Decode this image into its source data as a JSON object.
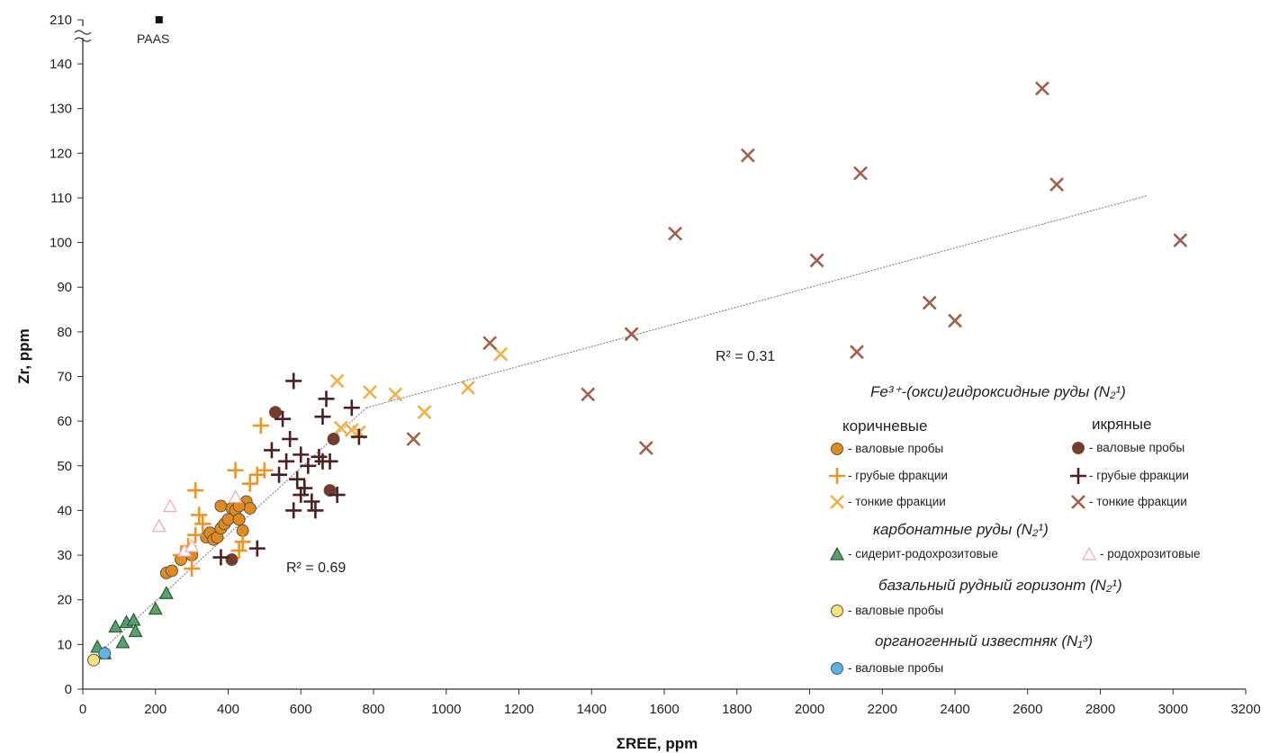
{
  "chart_data": {
    "type": "scatter",
    "xlabel": "ΣREE, ppm",
    "ylabel": "Zr, ppm",
    "xlim": [
      0,
      3200
    ],
    "ylim": [
      0,
      140
    ],
    "x_ticks": [
      0,
      200,
      400,
      600,
      800,
      1000,
      1200,
      1400,
      1600,
      1800,
      2000,
      2200,
      2400,
      2600,
      2800,
      3000,
      3200
    ],
    "y_ticks": [
      0,
      10,
      20,
      30,
      40,
      50,
      60,
      70,
      80,
      90,
      100,
      110,
      120,
      130,
      140
    ],
    "y_break_label": "210",
    "grid": false,
    "reference_point": {
      "label": "PAAS",
      "x": 210,
      "y": 210
    },
    "annotations": [
      {
        "text": "R² = 0.69"
      },
      {
        "text": "R² = 0.31"
      }
    ],
    "trendlines": [
      {
        "x": [
          30,
          780
        ],
        "y": [
          7,
          63
        ]
      },
      {
        "x": [
          780,
          2930
        ],
        "y": [
          63,
          110.5
        ]
      }
    ],
    "legend": {
      "group1_title": "Fe³⁺-(окси)гидроксидные руды (N₂¹)",
      "col1_header": "коричневые",
      "col2_header": "икряные",
      "bulk": "- валовые пробы",
      "coarse": "- грубые фракции",
      "fine": "- тонкие фракции",
      "group2_title": "карбонатные руды (N₂¹)",
      "siderite": "- сидерит-родохрозитовые",
      "rhodo": "- родохрозитовые",
      "group3_title": "базальный рудный горизонт (N₂¹)",
      "basal": "- валовые пробы",
      "group4_title": "органогенный известняк (N₁³)",
      "limestone": "- валовые пробы"
    },
    "series": [
      {
        "key": "brown_bulk",
        "color": "#e08a1e",
        "values": [
          [
            230,
            26
          ],
          [
            245,
            26.5
          ],
          [
            270,
            29
          ],
          [
            300,
            30
          ],
          [
            340,
            34
          ],
          [
            350,
            35
          ],
          [
            360,
            33.5
          ],
          [
            370,
            34
          ],
          [
            380,
            36
          ],
          [
            390,
            37
          ],
          [
            400,
            38
          ],
          [
            380,
            41
          ],
          [
            410,
            40.5
          ],
          [
            420,
            40
          ],
          [
            430,
            38
          ],
          [
            440,
            35.5
          ],
          [
            450,
            42
          ],
          [
            460,
            40.5
          ],
          [
            430,
            41
          ]
        ]
      },
      {
        "key": "brown_coarse",
        "color": "#e8952a",
        "values": [
          [
            280,
            30
          ],
          [
            300,
            27
          ],
          [
            310,
            44.5
          ],
          [
            320,
            39
          ],
          [
            310,
            34.5
          ],
          [
            330,
            37
          ],
          [
            290,
            32
          ],
          [
            270,
            30
          ],
          [
            420,
            49
          ],
          [
            440,
            33
          ],
          [
            430,
            31
          ],
          [
            460,
            46
          ],
          [
            480,
            48
          ],
          [
            490,
            59
          ],
          [
            500,
            49
          ]
        ]
      },
      {
        "key": "brown_fine",
        "color": "#f0b04a",
        "values": [
          [
            700,
            69
          ],
          [
            710,
            58.5
          ],
          [
            740,
            58
          ],
          [
            760,
            57.5
          ],
          [
            790,
            66.5
          ],
          [
            860,
            66
          ],
          [
            940,
            62
          ],
          [
            1060,
            67.5
          ],
          [
            1150,
            75
          ]
        ]
      },
      {
        "key": "ikra_bulk",
        "color": "#7a3a28",
        "values": [
          [
            410,
            29
          ],
          [
            530,
            62
          ],
          [
            680,
            44.5
          ],
          [
            690,
            56
          ]
        ]
      },
      {
        "key": "ikra_coarse",
        "color": "#4a2020",
        "values": [
          [
            380,
            29.5
          ],
          [
            480,
            31.5
          ],
          [
            520,
            53.5
          ],
          [
            540,
            48
          ],
          [
            550,
            60.5
          ],
          [
            560,
            51
          ],
          [
            570,
            56
          ],
          [
            580,
            69
          ],
          [
            580,
            40
          ],
          [
            590,
            47
          ],
          [
            600,
            43.5
          ],
          [
            600,
            52.5
          ],
          [
            610,
            45
          ],
          [
            620,
            50
          ],
          [
            630,
            42
          ],
          [
            640,
            40
          ],
          [
            650,
            52
          ],
          [
            660,
            51
          ],
          [
            660,
            61
          ],
          [
            670,
            65
          ],
          [
            680,
            51
          ],
          [
            700,
            43.5
          ],
          [
            740,
            63
          ],
          [
            760,
            56.5
          ]
        ]
      },
      {
        "key": "ikra_fine",
        "color": "#a0604a",
        "values": [
          [
            910,
            56
          ],
          [
            1120,
            77.5
          ],
          [
            1390,
            66
          ],
          [
            1510,
            79.5
          ],
          [
            1550,
            54
          ],
          [
            1630,
            102
          ],
          [
            1830,
            119.5
          ],
          [
            2020,
            96
          ],
          [
            2130,
            75.5
          ],
          [
            2140,
            115.5
          ],
          [
            2330,
            86.5
          ],
          [
            2400,
            82.5
          ],
          [
            2640,
            134.5
          ],
          [
            2680,
            113
          ],
          [
            3020,
            100.5
          ]
        ]
      },
      {
        "key": "siderite",
        "color": "#5aa06a",
        "values": [
          [
            40,
            9.5
          ],
          [
            60,
            8
          ],
          [
            90,
            14
          ],
          [
            110,
            10.5
          ],
          [
            120,
            15
          ],
          [
            140,
            15.5
          ],
          [
            145,
            13
          ],
          [
            200,
            18
          ],
          [
            230,
            21.5
          ]
        ]
      },
      {
        "key": "rhodo",
        "color": "#f0a8b0",
        "values": [
          [
            210,
            36.5
          ],
          [
            240,
            41
          ],
          [
            280,
            31
          ],
          [
            300,
            32
          ],
          [
            420,
            43
          ]
        ]
      },
      {
        "key": "basal",
        "color": "#f6e27a",
        "values": [
          [
            30,
            6.5
          ]
        ]
      },
      {
        "key": "limestone",
        "color": "#5ab4e6",
        "values": [
          [
            60,
            8
          ]
        ]
      }
    ]
  }
}
